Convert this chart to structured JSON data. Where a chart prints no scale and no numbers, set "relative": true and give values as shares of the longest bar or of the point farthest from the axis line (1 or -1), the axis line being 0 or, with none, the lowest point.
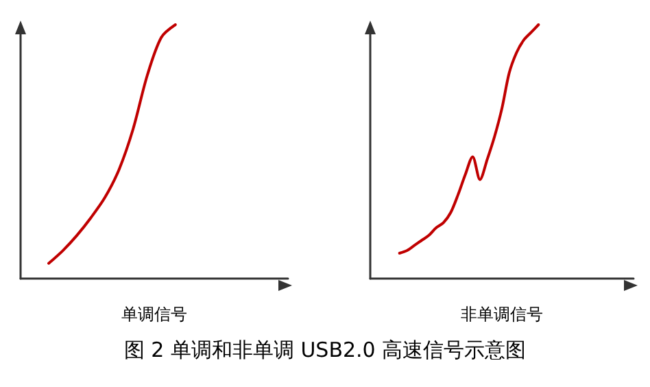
{
  "chart_data": [
    {
      "type": "line",
      "title": "图 2 单调和非单调 USB2.0 高速信号示意图",
      "xlabel": "单调信号",
      "relative": true,
      "grid": false,
      "marker": "none",
      "line_style": "solid",
      "categories": [
        null,
        null,
        null,
        null,
        null,
        null,
        null,
        null,
        null,
        null,
        null,
        null,
        null,
        null,
        null,
        null,
        null,
        null,
        null,
        null
      ],
      "series": [
        {
          "color": "#c00000",
          "values": [
            null,
            null,
            0.06,
            0.11,
            0.17,
            0.24,
            0.32,
            0.43,
            0.59,
            0.8,
            0.95,
            1.0,
            null,
            null,
            null,
            null,
            null,
            null,
            null,
            null
          ]
        }
      ]
    },
    {
      "type": "line",
      "xlabel": "非单调信号",
      "relative": true,
      "grid": false,
      "marker": "none",
      "line_style": "solid",
      "categories": [
        null,
        null,
        null,
        null,
        null,
        null,
        null,
        null,
        null,
        null,
        null,
        null,
        null,
        null,
        null,
        null,
        null,
        null,
        null,
        null,
        null,
        null,
        null,
        null,
        null,
        null,
        null,
        null,
        null,
        null,
        null,
        null,
        null,
        null,
        null,
        null,
        null
      ],
      "series": [
        {
          "color": "#c00000",
          "values": [
            null,
            null,
            null,
            null,
            0.1,
            0.11,
            0.13,
            0.15,
            0.17,
            0.2,
            0.22,
            0.26,
            0.33,
            0.41,
            0.48,
            0.39,
            0.47,
            0.56,
            0.67,
            0.81,
            0.89,
            0.94,
            0.97,
            1.0,
            null,
            null,
            null,
            null,
            null,
            null,
            null,
            null,
            null,
            null,
            null,
            null,
            null
          ]
        }
      ]
    }
  ]
}
